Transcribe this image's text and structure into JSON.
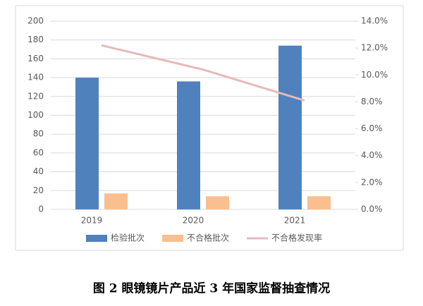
{
  "chart_data": {
    "type": "bar-line",
    "title": "图 2  眼镜镜片产品近 3 年国家监督抽查情况",
    "categories": [
      "2019",
      "2020",
      "2021"
    ],
    "series": [
      {
        "name": "检验批次",
        "type": "bar",
        "color": "#4f81bd",
        "values": [
          140,
          136,
          174
        ]
      },
      {
        "name": "不合格批次",
        "type": "bar",
        "color": "#f9bf8f",
        "values": [
          17,
          14,
          14
        ]
      },
      {
        "name": "不合格发现率",
        "type": "line",
        "axis": "y2",
        "color": "#e6b9b8",
        "values": [
          12.2,
          10.4,
          8.1
        ]
      }
    ],
    "ylim": [
      0,
      200
    ],
    "yticks": [
      0,
      20,
      40,
      60,
      80,
      100,
      120,
      140,
      160,
      180,
      200
    ],
    "y2lim": [
      0,
      14
    ],
    "y2ticks": [
      {
        "value": 0,
        "label": "0.0%"
      },
      {
        "value": 2,
        "label": "2.0%"
      },
      {
        "value": 4,
        "label": "4.0%"
      },
      {
        "value": 6,
        "label": "6.0%"
      },
      {
        "value": 8,
        "label": "8.0%"
      },
      {
        "value": 10,
        "label": "10.0%"
      },
      {
        "value": 12,
        "label": "12.0%"
      },
      {
        "value": 14,
        "label": "14.0%"
      }
    ],
    "grid": true,
    "legend": "bottom"
  }
}
